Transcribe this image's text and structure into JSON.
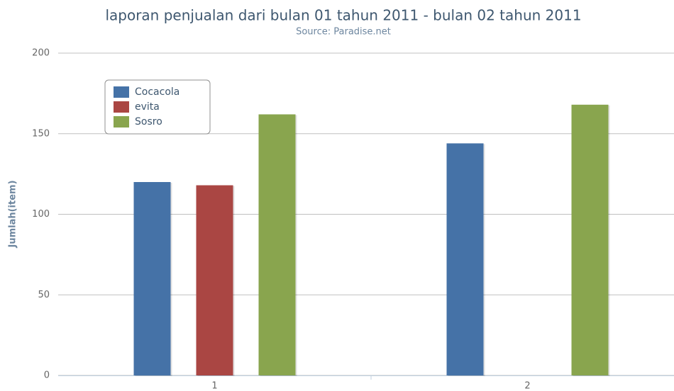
{
  "chart_data": {
    "type": "bar",
    "title": "laporan penjualan dari bulan 01 tahun 2011 - bulan 02 tahun 2011",
    "subtitle": "Source: Paradise.net",
    "y_label": "Jumlah(item)",
    "categories": [
      "1",
      "2"
    ],
    "series": [
      {
        "name": "Cocacola",
        "color": "#4572a7",
        "values": [
          120,
          144
        ]
      },
      {
        "name": "evita",
        "color": "#aa4643",
        "values": [
          118,
          null
        ]
      },
      {
        "name": "Sosro",
        "color": "#89a54e",
        "values": [
          162,
          168
        ]
      }
    ],
    "ylim": [
      0,
      200
    ],
    "yticks": [
      0,
      50,
      100,
      150,
      200
    ],
    "grid": true,
    "legend": "top-left"
  }
}
